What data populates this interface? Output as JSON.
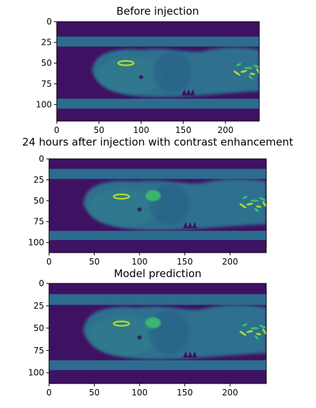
{
  "chart_data": [
    {
      "type": "heatmap",
      "title": "Before injection",
      "xlabel": "",
      "ylabel": "",
      "xlim": [
        0,
        240
      ],
      "ylim": [
        120,
        0
      ],
      "xticks": [
        0,
        50,
        100,
        150,
        200
      ],
      "yticks": [
        0,
        25,
        50,
        75,
        100
      ],
      "colormap": "viridis",
      "table_bands_y": [
        [
          18,
          30
        ],
        [
          93,
          105
        ]
      ],
      "body": {
        "x_range": [
          42,
          240
        ],
        "y_range": [
          32,
          90
        ]
      },
      "bright_features": [
        {
          "name": "eye",
          "x": 82,
          "y": 50
        },
        {
          "name": "tail",
          "x": 225,
          "y": 58
        }
      ],
      "enhancement": false
    },
    {
      "type": "heatmap",
      "title": "24 hours after injection with contrast enhancement",
      "xlabel": "",
      "ylabel": "",
      "xlim": [
        0,
        240
      ],
      "ylim": [
        112,
        0
      ],
      "xticks": [
        0,
        50,
        100,
        150,
        200
      ],
      "yticks": [
        0,
        25,
        50,
        75,
        100
      ],
      "colormap": "viridis",
      "table_bands_y": [
        [
          12,
          24
        ],
        [
          86,
          97
        ]
      ],
      "body": {
        "x_range": [
          38,
          240
        ],
        "y_range": [
          25,
          84
        ]
      },
      "bright_features": [
        {
          "name": "eye",
          "x": 80,
          "y": 45
        },
        {
          "name": "enhanced-organ",
          "x": 115,
          "y": 44
        },
        {
          "name": "tail",
          "x": 225,
          "y": 52
        }
      ],
      "enhancement": true
    },
    {
      "type": "heatmap",
      "title": "Model prediction",
      "xlabel": "",
      "ylabel": "",
      "xlim": [
        0,
        240
      ],
      "ylim": [
        112,
        0
      ],
      "xticks": [
        0,
        50,
        100,
        150,
        200
      ],
      "yticks": [
        0,
        25,
        50,
        75,
        100
      ],
      "colormap": "viridis",
      "table_bands_y": [
        [
          12,
          24
        ],
        [
          86,
          97
        ]
      ],
      "body": {
        "x_range": [
          38,
          240
        ],
        "y_range": [
          25,
          84
        ]
      },
      "bright_features": [
        {
          "name": "eye",
          "x": 80,
          "y": 45
        },
        {
          "name": "enhanced-organ",
          "x": 115,
          "y": 44
        },
        {
          "name": "tail",
          "x": 225,
          "y": 52
        }
      ],
      "enhancement": true
    }
  ]
}
